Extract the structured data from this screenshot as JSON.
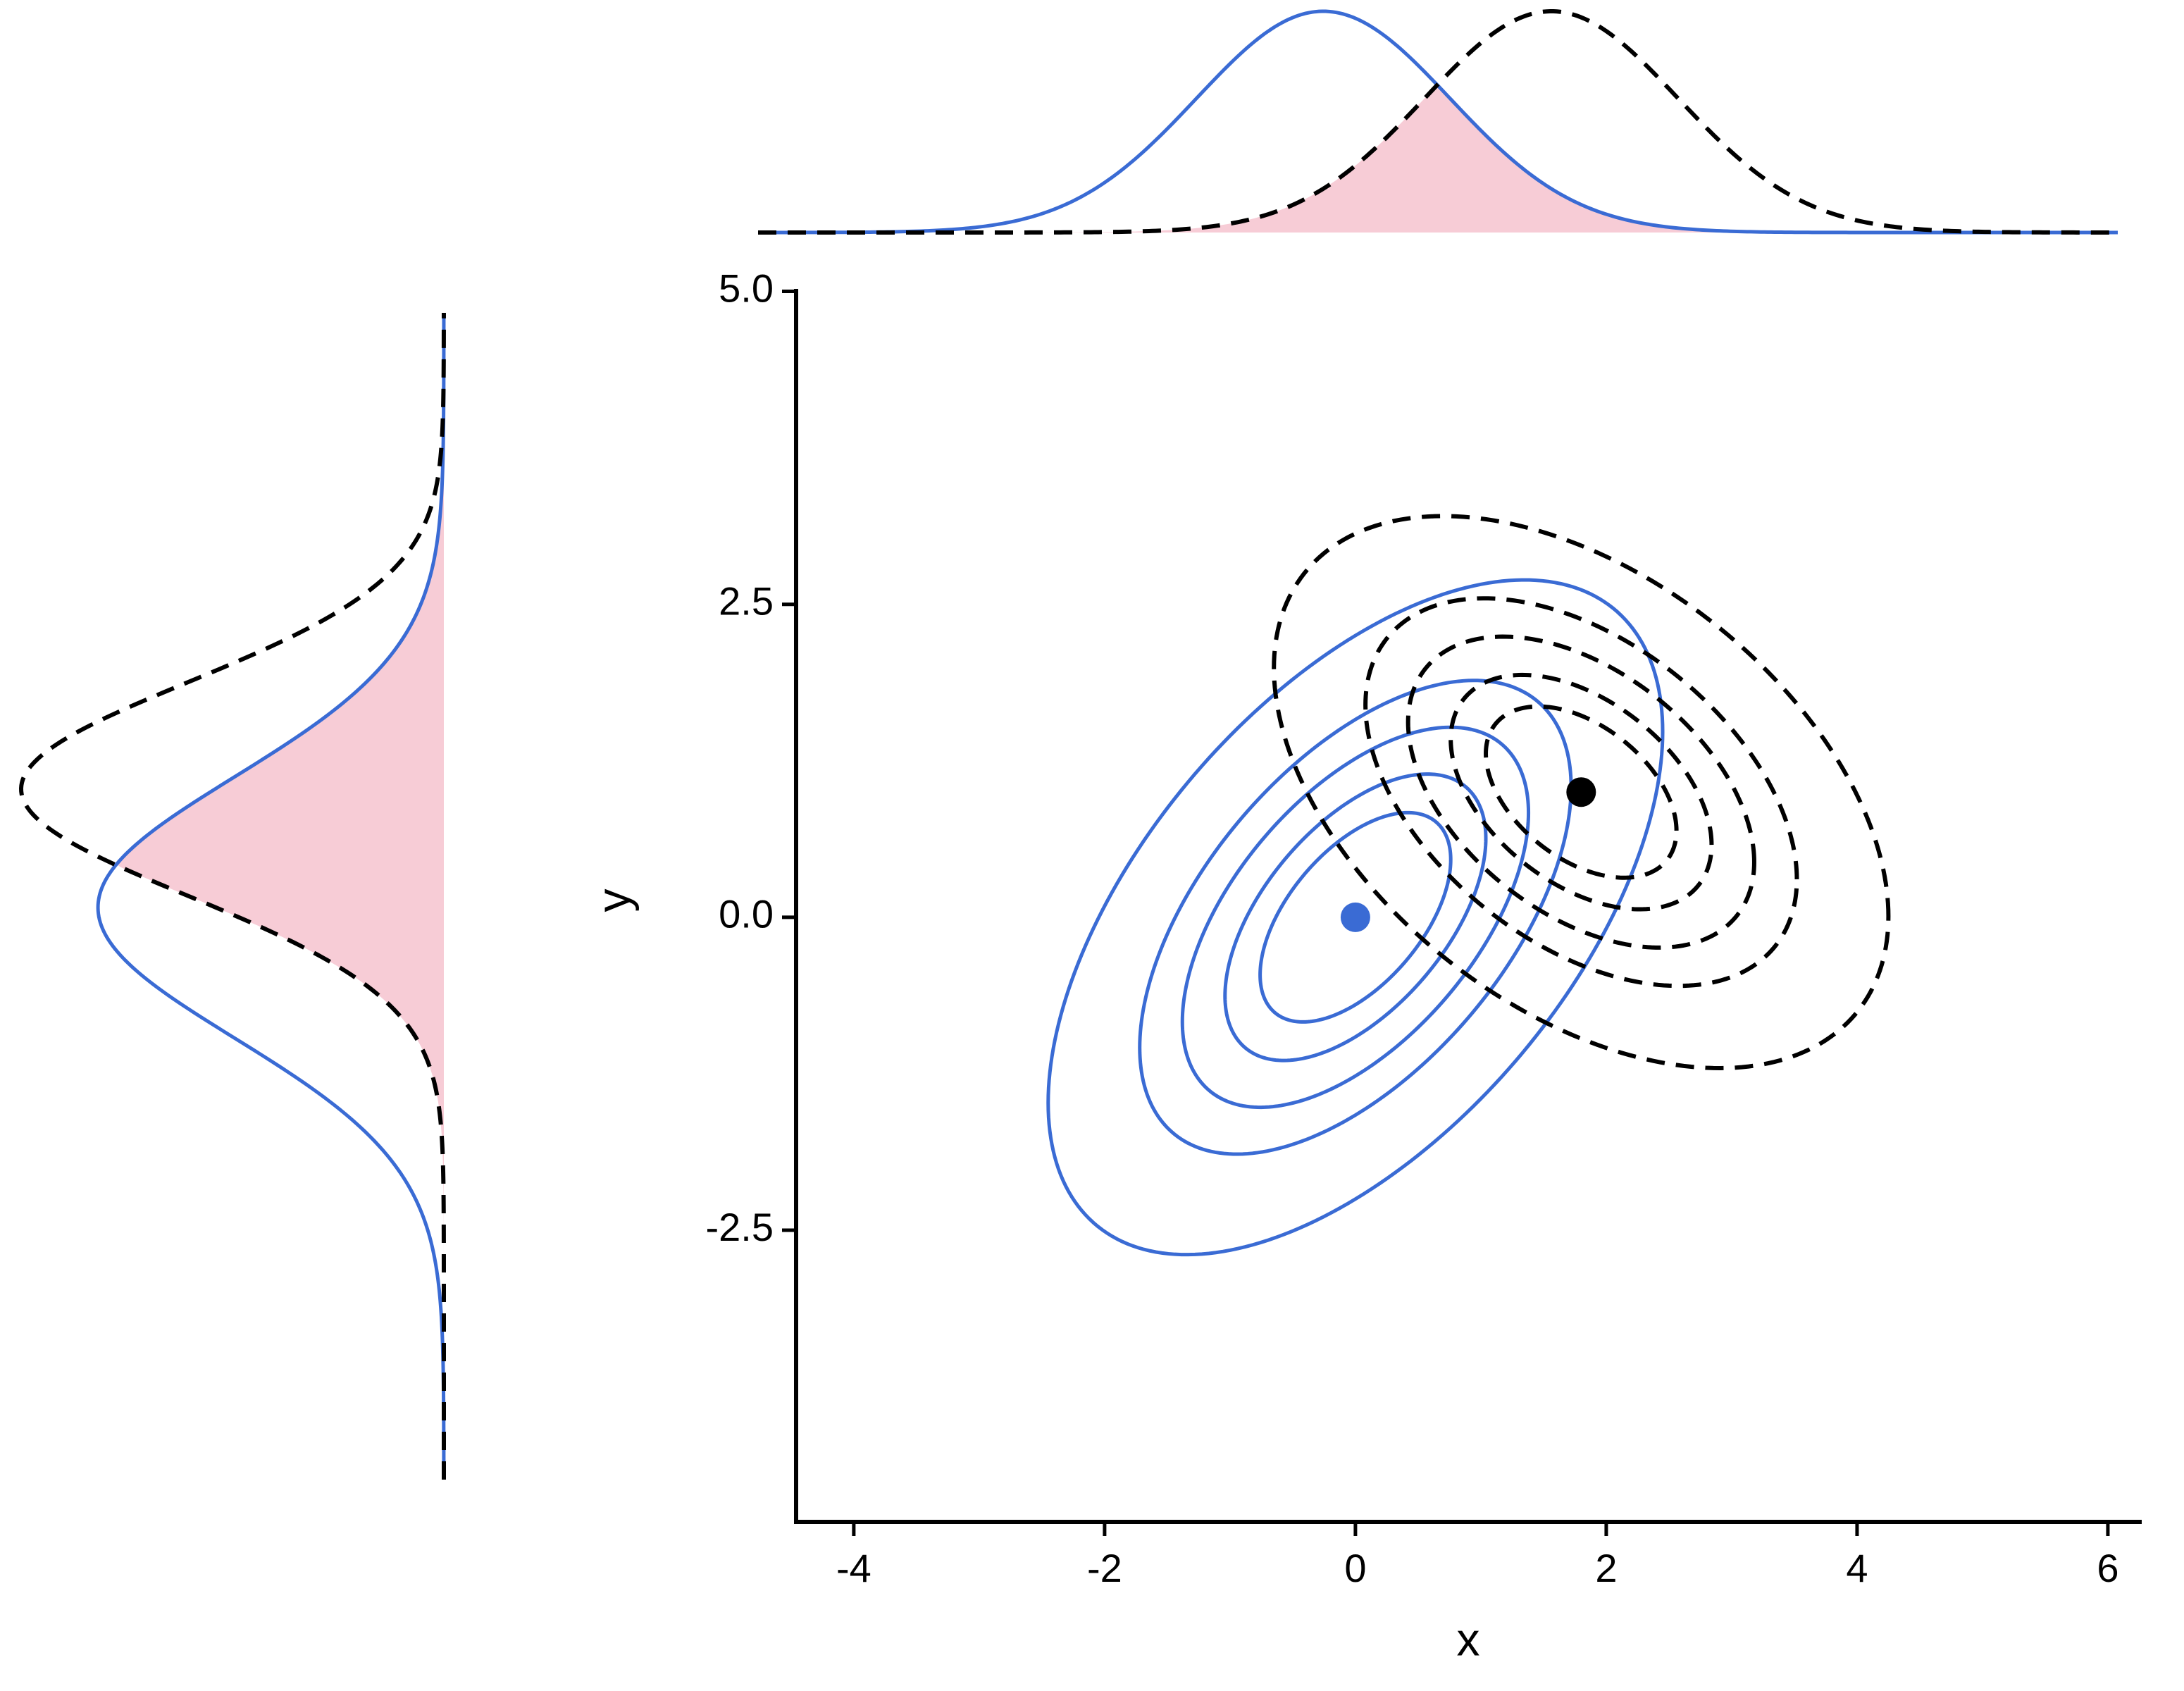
{
  "chart_data": {
    "type": "contour",
    "x_label": "x",
    "y_label": "y",
    "xlim": [
      -4.46,
      6.27
    ],
    "ylim": [
      -4.83,
      5.02
    ],
    "xticks": [
      -4,
      -2,
      0,
      2,
      4,
      6
    ],
    "yticks": [
      -2.5,
      {
        "value": 0,
        "label": "0.0"
      },
      2.5,
      {
        "value": 5,
        "label": "5.0"
      }
    ],
    "levels": [
      0.76,
      1.04,
      1.38,
      1.72,
      2.45
    ],
    "overlap_color": "#f7ccd6",
    "series": [
      {
        "color": "#3a6bd4",
        "dashed": false,
        "mean": [
          0,
          0
        ],
        "sx": 1,
        "sy": 1.1,
        "rho": 0.55
      },
      {
        "color": "#000000",
        "dashed": true,
        "mean": [
          1.8,
          1.0
        ],
        "sx": 1,
        "sy": 0.9,
        "rho": -0.45
      }
    ]
  }
}
